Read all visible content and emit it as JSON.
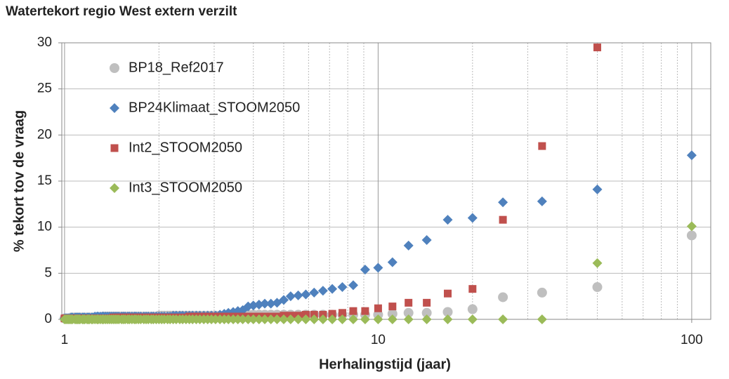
{
  "chart_data": {
    "type": "scatter",
    "title": "Watertekort regio West extern verzilt",
    "x_label": "Herhalingstijd (jaar)",
    "y_label": "% tekort tov de vraag",
    "log_x": true,
    "grid": true,
    "legend": "upper left",
    "xlim": [
      0.98,
      115
    ],
    "ylim": [
      0,
      30
    ],
    "xticks": [
      1,
      10,
      100
    ],
    "xminorticks": [
      2,
      3,
      4,
      5,
      6,
      7,
      8,
      9,
      20,
      30,
      40,
      50,
      60,
      70,
      80,
      90
    ],
    "yticks": [
      0,
      5,
      10,
      15,
      20,
      25,
      30
    ],
    "x": [
      100,
      50,
      33.33,
      25,
      20,
      16.67,
      14.29,
      12.5,
      11.11,
      10,
      9.09,
      8.33,
      7.69,
      7.14,
      6.67,
      6.25,
      5.88,
      5.56,
      5.26,
      5,
      4.76,
      4.55,
      4.35,
      4.17,
      4,
      3.85,
      3.7,
      3.57,
      3.45,
      3.33,
      3.23,
      3.13,
      3.03,
      2.94,
      2.86,
      2.78,
      2.7,
      2.63,
      2.56,
      2.5,
      2.44,
      2.38,
      2.33,
      2.27,
      2.22,
      2.17,
      2.13,
      2.08,
      2.04,
      2,
      1.96,
      1.92,
      1.89,
      1.85,
      1.82,
      1.79,
      1.75,
      1.72,
      1.69,
      1.67,
      1.64,
      1.61,
      1.59,
      1.56,
      1.54,
      1.52,
      1.49,
      1.47,
      1.45,
      1.43,
      1.41,
      1.39,
      1.37,
      1.35,
      1.33,
      1.32,
      1.3,
      1.28,
      1.27,
      1.25,
      1.23,
      1.22,
      1.2,
      1.19,
      1.18,
      1.16,
      1.15,
      1.14,
      1.12,
      1.11,
      1.1,
      1.09,
      1.08,
      1.06,
      1.05,
      1.04,
      1.03,
      1.02,
      1.01,
      1
    ],
    "series": [
      {
        "name": "BP18_Ref2017",
        "color": "#bfbfbf",
        "marker": "circle",
        "values": [
          9.1,
          3.5,
          2.9,
          2.4,
          1.1,
          0.8,
          0.7,
          0.7,
          0.6,
          0.5,
          0.5,
          0.5,
          0.5,
          0.5,
          0.5,
          0.5,
          0.5,
          0.5,
          0.5,
          0.5,
          0.5,
          0.5,
          0.5,
          0.5,
          0.5,
          0.5,
          0.5,
          0.5,
          0.5,
          0.5,
          0.4,
          0.4,
          0.4,
          0.4,
          0.4,
          0.4,
          0.4,
          0.4,
          0.4,
          0.4,
          0.4,
          0.4,
          0.4,
          0.4,
          0.4,
          0.4,
          0.4,
          0.4,
          0.4,
          0.4,
          0.3,
          0.3,
          0.3,
          0.3,
          0.3,
          0.3,
          0.3,
          0.3,
          0.3,
          0.3,
          0.3,
          0.3,
          0.3,
          0.3,
          0.3,
          0.3,
          0.3,
          0.3,
          0.3,
          0.3,
          0.3,
          0.3,
          0.3,
          0.3,
          0.3,
          0.2,
          0.2,
          0.2,
          0.2,
          0.2,
          0.2,
          0.2,
          0.2,
          0.2,
          0.2,
          0.2,
          0.2,
          0.2,
          0.2,
          0.2,
          0.2,
          0.2,
          0.2,
          0.2,
          0.2,
          0.1,
          0.1,
          0.1,
          0.1,
          0.1
        ]
      },
      {
        "name": "BP24Klimaat_STOOM2050",
        "color": "#4f81bd",
        "marker": "diamond",
        "values": [
          17.8,
          14.1,
          12.8,
          12.7,
          11.0,
          10.8,
          8.6,
          8.0,
          6.2,
          5.6,
          5.4,
          3.7,
          3.5,
          3.3,
          3.1,
          2.9,
          2.7,
          2.6,
          2.5,
          2.1,
          1.8,
          1.7,
          1.7,
          1.6,
          1.5,
          1.4,
          1.0,
          0.9,
          0.8,
          0.7,
          0.6,
          0.5,
          0.4,
          0.4,
          0.4,
          0.4,
          0.4,
          0.4,
          0.4,
          0.4,
          0.4,
          0.4,
          0.4,
          0.4,
          0.4,
          0.3,
          0.3,
          0.3,
          0.3,
          0.3,
          0.3,
          0.3,
          0.3,
          0.3,
          0.3,
          0.3,
          0.3,
          0.3,
          0.3,
          0.3,
          0.3,
          0.3,
          0.3,
          0.3,
          0.3,
          0.3,
          0.3,
          0.3,
          0.3,
          0.3,
          0.3,
          0.3,
          0.3,
          0.3,
          0.3,
          0.3,
          0.3,
          0.3,
          0.3,
          0.3,
          0.2,
          0.2,
          0.2,
          0.2,
          0.2,
          0.2,
          0.2,
          0.2,
          0.2,
          0.2,
          0.2,
          0.2,
          0.2,
          0.2,
          0.2,
          0.1,
          0.1,
          0.1,
          0.1,
          0.1
        ]
      },
      {
        "name": "Int2_STOOM2050",
        "color": "#c0504d",
        "marker": "square",
        "values": [
          null,
          29.5,
          18.8,
          10.8,
          3.3,
          2.8,
          1.8,
          1.8,
          1.4,
          1.2,
          0.9,
          0.9,
          0.7,
          0.6,
          0.5,
          0.5,
          0.5,
          0.4,
          0.4,
          0.4,
          0.3,
          0.3,
          0.3,
          0.3,
          0.3,
          0.3,
          0.3,
          0.3,
          0.3,
          0.3,
          0.3,
          0.3,
          0.3,
          0.3,
          0.3,
          0.3,
          0.3,
          0.3,
          0.3,
          0.3,
          0.2,
          0.2,
          0.2,
          0.2,
          0.2,
          0.2,
          0.2,
          0.2,
          0.2,
          0.2,
          0.2,
          0.2,
          0.2,
          0.2,
          0.2,
          0.2,
          0.2,
          0.2,
          0.2,
          0.2,
          0.2,
          0.2,
          0.2,
          0.2,
          0.2,
          0.2,
          0.2,
          0.2,
          0.2,
          0.2,
          0.1,
          0.1,
          0.1,
          0.1,
          0.1,
          0.1,
          0.1,
          0.1,
          0.1,
          0.1,
          0.1,
          0.1,
          0.1,
          0.1,
          0.1,
          0.1,
          0.1,
          0.1,
          0.1,
          0.1,
          0.1,
          0.1,
          0.1,
          0.1,
          0.1,
          0.1,
          0.1,
          0.1,
          0.1,
          0.1
        ]
      },
      {
        "name": "Int3_STOOM2050",
        "color": "#9bbb59",
        "marker": "diamond",
        "values": [
          10.1,
          6.1,
          0,
          0,
          0,
          0,
          0,
          0,
          0,
          0,
          0,
          0,
          0,
          0,
          0,
          0,
          0,
          0,
          0,
          0,
          0,
          0,
          0,
          0,
          0,
          0,
          0,
          0,
          0,
          0,
          0,
          0,
          0,
          0,
          0,
          0,
          0,
          0,
          0,
          0,
          0,
          0,
          0,
          0,
          0,
          0,
          0,
          0,
          0,
          0,
          0,
          0,
          0,
          0,
          0,
          0,
          0,
          0,
          0,
          0,
          0,
          0,
          0,
          0,
          0,
          0,
          0,
          0,
          0,
          0,
          0,
          0,
          0,
          0,
          0,
          0,
          0,
          0,
          0,
          0,
          0,
          0,
          0,
          0,
          0,
          0,
          0,
          0,
          0,
          0,
          0,
          0,
          0,
          0,
          0,
          0,
          0,
          0,
          0,
          0
        ]
      }
    ]
  }
}
